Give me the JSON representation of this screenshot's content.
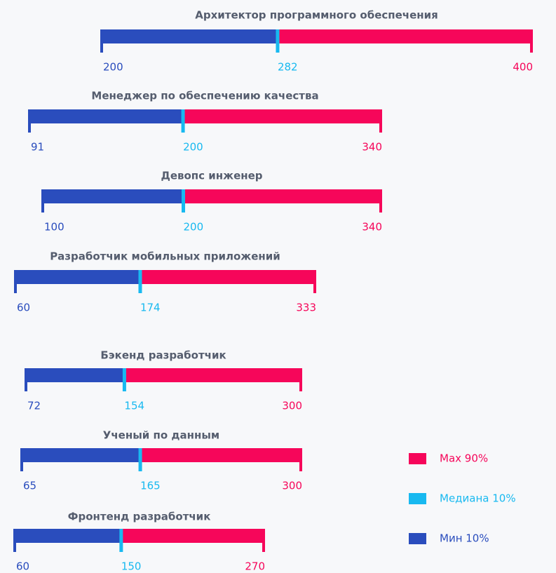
{
  "chart_data": {
    "type": "range",
    "categories": [
      "Архитектор программного обеспечения",
      "Менеджер по обеспечению качества",
      "Девопс инженер",
      "Разработчик мобильных приложений",
      "Бэкенд разработчик",
      "Ученый по данным",
      "Фронтенд разработчик"
    ],
    "series": [
      {
        "name": "Мин 10%",
        "color": "#2a4dbd",
        "values": [
          200,
          91,
          100,
          60,
          72,
          65,
          60
        ]
      },
      {
        "name": "Медиана 10%",
        "color": "#18b9f0",
        "values": [
          282,
          200,
          200,
          174,
          154,
          165,
          150
        ]
      },
      {
        "name": "Max 90%",
        "color": "#f6065a",
        "values": [
          400,
          340,
          340,
          333,
          300,
          300,
          270
        ]
      }
    ]
  }
}
